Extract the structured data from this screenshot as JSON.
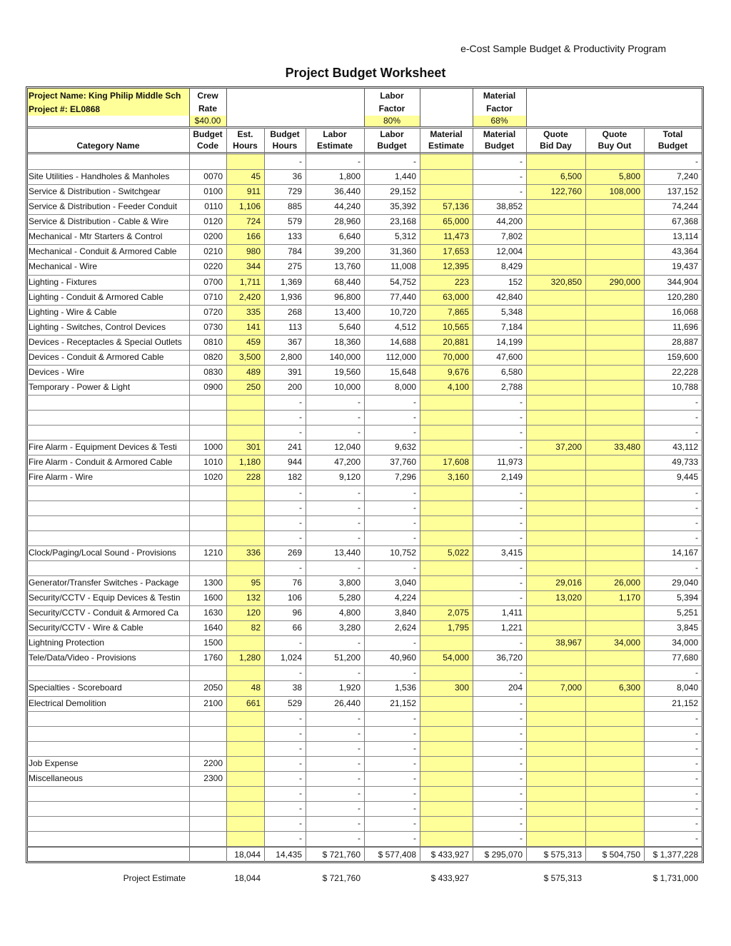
{
  "header": {
    "subtitle": "e-Cost Sample Budget & Productivity Program",
    "title": "Project Budget Worksheet"
  },
  "info": {
    "project_name": "Project Name: King Philip Middle Sch",
    "project_number": "Project #: EL0868",
    "crew_rate": {
      "label": [
        "Crew",
        "Rate"
      ],
      "value": "$40.00"
    },
    "labor_factor": {
      "label": [
        "Labor",
        "Factor"
      ],
      "value": "80%"
    },
    "material_factor": {
      "label": [
        "Material",
        "Factor"
      ],
      "value": "68%"
    }
  },
  "table": {
    "columns": [
      [
        "Category Name"
      ],
      [
        "Budget",
        "Code"
      ],
      [
        "Est.",
        "Hours"
      ],
      [
        "Budget",
        "Hours"
      ],
      [
        "Labor",
        "Estimate"
      ],
      [
        "Labor",
        "Budget"
      ],
      [
        "Material",
        "Estimate"
      ],
      [
        "Material",
        "Budget"
      ],
      [
        "Quote",
        "Bid Day"
      ],
      [
        "Quote",
        "Buy Out"
      ],
      [
        "Total",
        "Budget"
      ]
    ],
    "rows": [
      [
        null,
        null,
        null,
        "-",
        "-",
        "-",
        null,
        "-",
        null,
        null,
        "-"
      ],
      [
        "Site Utilities - Handholes & Manholes",
        "0070",
        "45",
        "36",
        "1,800",
        "1,440",
        null,
        "-",
        "6,500",
        "5,800",
        "7,240"
      ],
      [
        "Service & Distribution - Switchgear",
        "0100",
        "911",
        "729",
        "36,440",
        "29,152",
        null,
        "-",
        "122,760",
        "108,000",
        "137,152"
      ],
      [
        "Service & Distribution - Feeder Conduit",
        "0110",
        "1,106",
        "885",
        "44,240",
        "35,392",
        "57,136",
        "38,852",
        null,
        null,
        "74,244"
      ],
      [
        "Service & Distribution - Cable & Wire",
        "0120",
        "724",
        "579",
        "28,960",
        "23,168",
        "65,000",
        "44,200",
        null,
        null,
        "67,368"
      ],
      [
        "Mechanical - Mtr Starters & Control",
        "0200",
        "166",
        "133",
        "6,640",
        "5,312",
        "11,473",
        "7,802",
        null,
        null,
        "13,114"
      ],
      [
        "Mechanical - Conduit & Armored Cable",
        "0210",
        "980",
        "784",
        "39,200",
        "31,360",
        "17,653",
        "12,004",
        null,
        null,
        "43,364"
      ],
      [
        "Mechanical - Wire",
        "0220",
        "344",
        "275",
        "13,760",
        "11,008",
        "12,395",
        "8,429",
        null,
        null,
        "19,437"
      ],
      [
        "Lighting - Fixtures",
        "0700",
        "1,711",
        "1,369",
        "68,440",
        "54,752",
        "223",
        "152",
        "320,850",
        "290,000",
        "344,904"
      ],
      [
        "Lighting - Conduit & Armored Cable",
        "0710",
        "2,420",
        "1,936",
        "96,800",
        "77,440",
        "63,000",
        "42,840",
        null,
        null,
        "120,280"
      ],
      [
        "Lighting - Wire & Cable",
        "0720",
        "335",
        "268",
        "13,400",
        "10,720",
        "7,865",
        "5,348",
        null,
        null,
        "16,068"
      ],
      [
        "Lighting - Switches, Control Devices",
        "0730",
        "141",
        "113",
        "5,640",
        "4,512",
        "10,565",
        "7,184",
        null,
        null,
        "11,696"
      ],
      [
        "Devices - Receptacles & Special Outlets",
        "0810",
        "459",
        "367",
        "18,360",
        "14,688",
        "20,881",
        "14,199",
        null,
        null,
        "28,887"
      ],
      [
        "Devices - Conduit & Armored Cable",
        "0820",
        "3,500",
        "2,800",
        "140,000",
        "112,000",
        "70,000",
        "47,600",
        null,
        null,
        "159,600"
      ],
      [
        "Devices - Wire",
        "0830",
        "489",
        "391",
        "19,560",
        "15,648",
        "9,676",
        "6,580",
        null,
        null,
        "22,228"
      ],
      [
        "Temporary - Power & Light",
        "0900",
        "250",
        "200",
        "10,000",
        "8,000",
        "4,100",
        "2,788",
        null,
        null,
        "10,788"
      ],
      [
        null,
        null,
        null,
        "-",
        "-",
        "-",
        null,
        "-",
        null,
        null,
        "-"
      ],
      [
        null,
        null,
        null,
        "-",
        "-",
        "-",
        null,
        "-",
        null,
        null,
        "-"
      ],
      [
        null,
        null,
        null,
        "-",
        "-",
        "-",
        null,
        "-",
        null,
        null,
        "-"
      ],
      [
        "Fire Alarm - Equipment Devices & Testi",
        "1000",
        "301",
        "241",
        "12,040",
        "9,632",
        null,
        "-",
        "37,200",
        "33,480",
        "43,112"
      ],
      [
        "Fire Alarm - Conduit & Armored Cable",
        "1010",
        "1,180",
        "944",
        "47,200",
        "37,760",
        "17,608",
        "11,973",
        null,
        null,
        "49,733"
      ],
      [
        "Fire Alarm - Wire",
        "1020",
        "228",
        "182",
        "9,120",
        "7,296",
        "3,160",
        "2,149",
        null,
        null,
        "9,445"
      ],
      [
        null,
        null,
        null,
        "-",
        "-",
        "-",
        null,
        "-",
        null,
        null,
        "-"
      ],
      [
        null,
        null,
        null,
        "-",
        "-",
        "-",
        null,
        "-",
        null,
        null,
        "-"
      ],
      [
        null,
        null,
        null,
        "-",
        "-",
        "-",
        null,
        "-",
        null,
        null,
        "-"
      ],
      [
        null,
        null,
        null,
        "-",
        "-",
        "-",
        null,
        "-",
        null,
        null,
        "-"
      ],
      [
        "Clock/Paging/Local Sound - Provisions",
        "1210",
        "336",
        "269",
        "13,440",
        "10,752",
        "5,022",
        "3,415",
        null,
        null,
        "14,167"
      ],
      [
        null,
        null,
        null,
        "-",
        "-",
        "-",
        null,
        "-",
        null,
        null,
        "-"
      ],
      [
        "Generator/Transfer Switches - Package",
        "1300",
        "95",
        "76",
        "3,800",
        "3,040",
        null,
        "-",
        "29,016",
        "26,000",
        "29,040"
      ],
      [
        "Security/CCTV - Equip Devices & Testin",
        "1600",
        "132",
        "106",
        "5,280",
        "4,224",
        null,
        "-",
        "13,020",
        "1,170",
        "5,394"
      ],
      [
        "Security/CCTV - Conduit & Armored Ca",
        "1630",
        "120",
        "96",
        "4,800",
        "3,840",
        "2,075",
        "1,411",
        null,
        null,
        "5,251"
      ],
      [
        "Security/CCTV - Wire & Cable",
        "1640",
        "82",
        "66",
        "3,280",
        "2,624",
        "1,795",
        "1,221",
        null,
        null,
        "3,845"
      ],
      [
        "Lightning Protection",
        "1500",
        null,
        "-",
        "-",
        "-",
        null,
        "-",
        "38,967",
        "34,000",
        "34,000"
      ],
      [
        "Tele/Data/Video - Provisions",
        "1760",
        "1,280",
        "1,024",
        "51,200",
        "40,960",
        "54,000",
        "36,720",
        null,
        null,
        "77,680"
      ],
      [
        null,
        null,
        null,
        "-",
        "-",
        "-",
        null,
        "-",
        null,
        null,
        "-"
      ],
      [
        "Specialties - Scoreboard",
        "2050",
        "48",
        "38",
        "1,920",
        "1,536",
        "300",
        "204",
        "7,000",
        "6,300",
        "8,040"
      ],
      [
        "Electrical Demolition",
        "2100",
        "661",
        "529",
        "26,440",
        "21,152",
        null,
        "-",
        null,
        null,
        "21,152"
      ],
      [
        null,
        null,
        null,
        "-",
        "-",
        "-",
        null,
        "-",
        null,
        null,
        "-"
      ],
      [
        null,
        null,
        null,
        "-",
        "-",
        "-",
        null,
        "-",
        null,
        null,
        "-"
      ],
      [
        null,
        null,
        null,
        "-",
        "-",
        "-",
        null,
        "-",
        null,
        null,
        "-"
      ],
      [
        "Job Expense",
        "2200",
        null,
        "-",
        "-",
        "-",
        null,
        "-",
        null,
        null,
        "-"
      ],
      [
        "Miscellaneous",
        "2300",
        null,
        "-",
        "-",
        "-",
        null,
        "-",
        null,
        null,
        "-"
      ],
      [
        null,
        null,
        null,
        "-",
        "-",
        "-",
        null,
        "-",
        null,
        null,
        "-"
      ],
      [
        null,
        null,
        null,
        "-",
        "-",
        "-",
        null,
        "-",
        null,
        null,
        "-"
      ],
      [
        null,
        null,
        null,
        "-",
        "-",
        "-",
        null,
        "-",
        null,
        null,
        "-"
      ],
      [
        null,
        null,
        null,
        "-",
        "-",
        "-",
        null,
        "-",
        null,
        null,
        "-"
      ]
    ],
    "totals": [
      null,
      null,
      "18,044",
      "14,435",
      "$ 721,760",
      "$ 577,408",
      "$ 433,927",
      "$ 295,070",
      "$ 575,313",
      "$ 504,750",
      "$ 1,377,228"
    ]
  },
  "project_estimate": [
    "Project Estimate",
    null,
    "18,044",
    null,
    "$ 721,760",
    null,
    "$ 433,927",
    null,
    "$ 575,313",
    null,
    "$ 1,731,000"
  ]
}
